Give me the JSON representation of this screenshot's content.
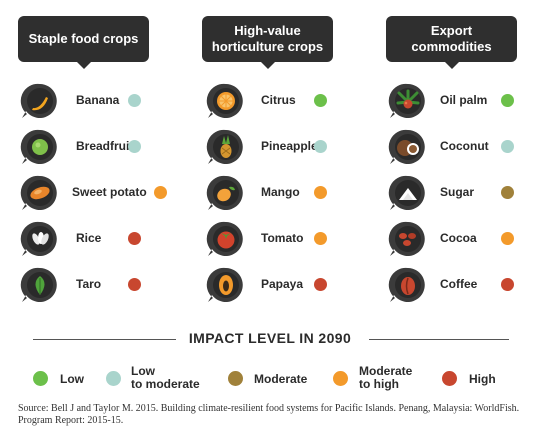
{
  "columns": [
    {
      "title": "Staple food crops",
      "crops": [
        {
          "name": "Banana",
          "impact": "Low to moderate",
          "icon": "banana-icon"
        },
        {
          "name": "Breadfruit",
          "impact": "Low to moderate",
          "icon": "breadfruit-icon"
        },
        {
          "name": "Sweet potato",
          "impact": "Moderate to high",
          "icon": "sweet-potato-icon"
        },
        {
          "name": "Rice",
          "impact": "High",
          "icon": "rice-icon"
        },
        {
          "name": "Taro",
          "impact": "High",
          "icon": "taro-icon"
        }
      ]
    },
    {
      "title": "High-value horticulture crops",
      "crops": [
        {
          "name": "Citrus",
          "impact": "Low",
          "icon": "citrus-icon"
        },
        {
          "name": "Pineapple",
          "impact": "Low to moderate",
          "icon": "pineapple-icon"
        },
        {
          "name": "Mango",
          "impact": "Moderate to high",
          "icon": "mango-icon"
        },
        {
          "name": "Tomato",
          "impact": "Moderate to high",
          "icon": "tomato-icon"
        },
        {
          "name": "Papaya",
          "impact": "High",
          "icon": "papaya-icon"
        }
      ]
    },
    {
      "title": "Export commodities",
      "crops": [
        {
          "name": "Oil palm",
          "impact": "Low",
          "icon": "oil-palm-icon"
        },
        {
          "name": "Coconut",
          "impact": "Low to moderate",
          "icon": "coconut-icon"
        },
        {
          "name": "Sugar",
          "impact": "Moderate",
          "icon": "sugar-icon"
        },
        {
          "name": "Cocoa",
          "impact": "Moderate to high",
          "icon": "cocoa-icon"
        },
        {
          "name": "Coffee",
          "impact": "High",
          "icon": "coffee-icon"
        }
      ]
    }
  ],
  "legend": {
    "title": "IMPACT LEVEL IN 2090",
    "items": [
      {
        "label": "Low",
        "color": "#6cc04a"
      },
      {
        "label": "Low to moderate",
        "color": "#a9d4cc"
      },
      {
        "label": "Moderate",
        "color": "#a0813a"
      },
      {
        "label": "Moderate to high",
        "color": "#f39a2b"
      },
      {
        "label": "High",
        "color": "#c8472f"
      }
    ]
  },
  "source": "Source: Bell J and Taylor M. 2015. Building climate-resilient food systems for Pacific Islands. Penang, Malaysia: WorldFish. Program Report: 2015-15."
}
